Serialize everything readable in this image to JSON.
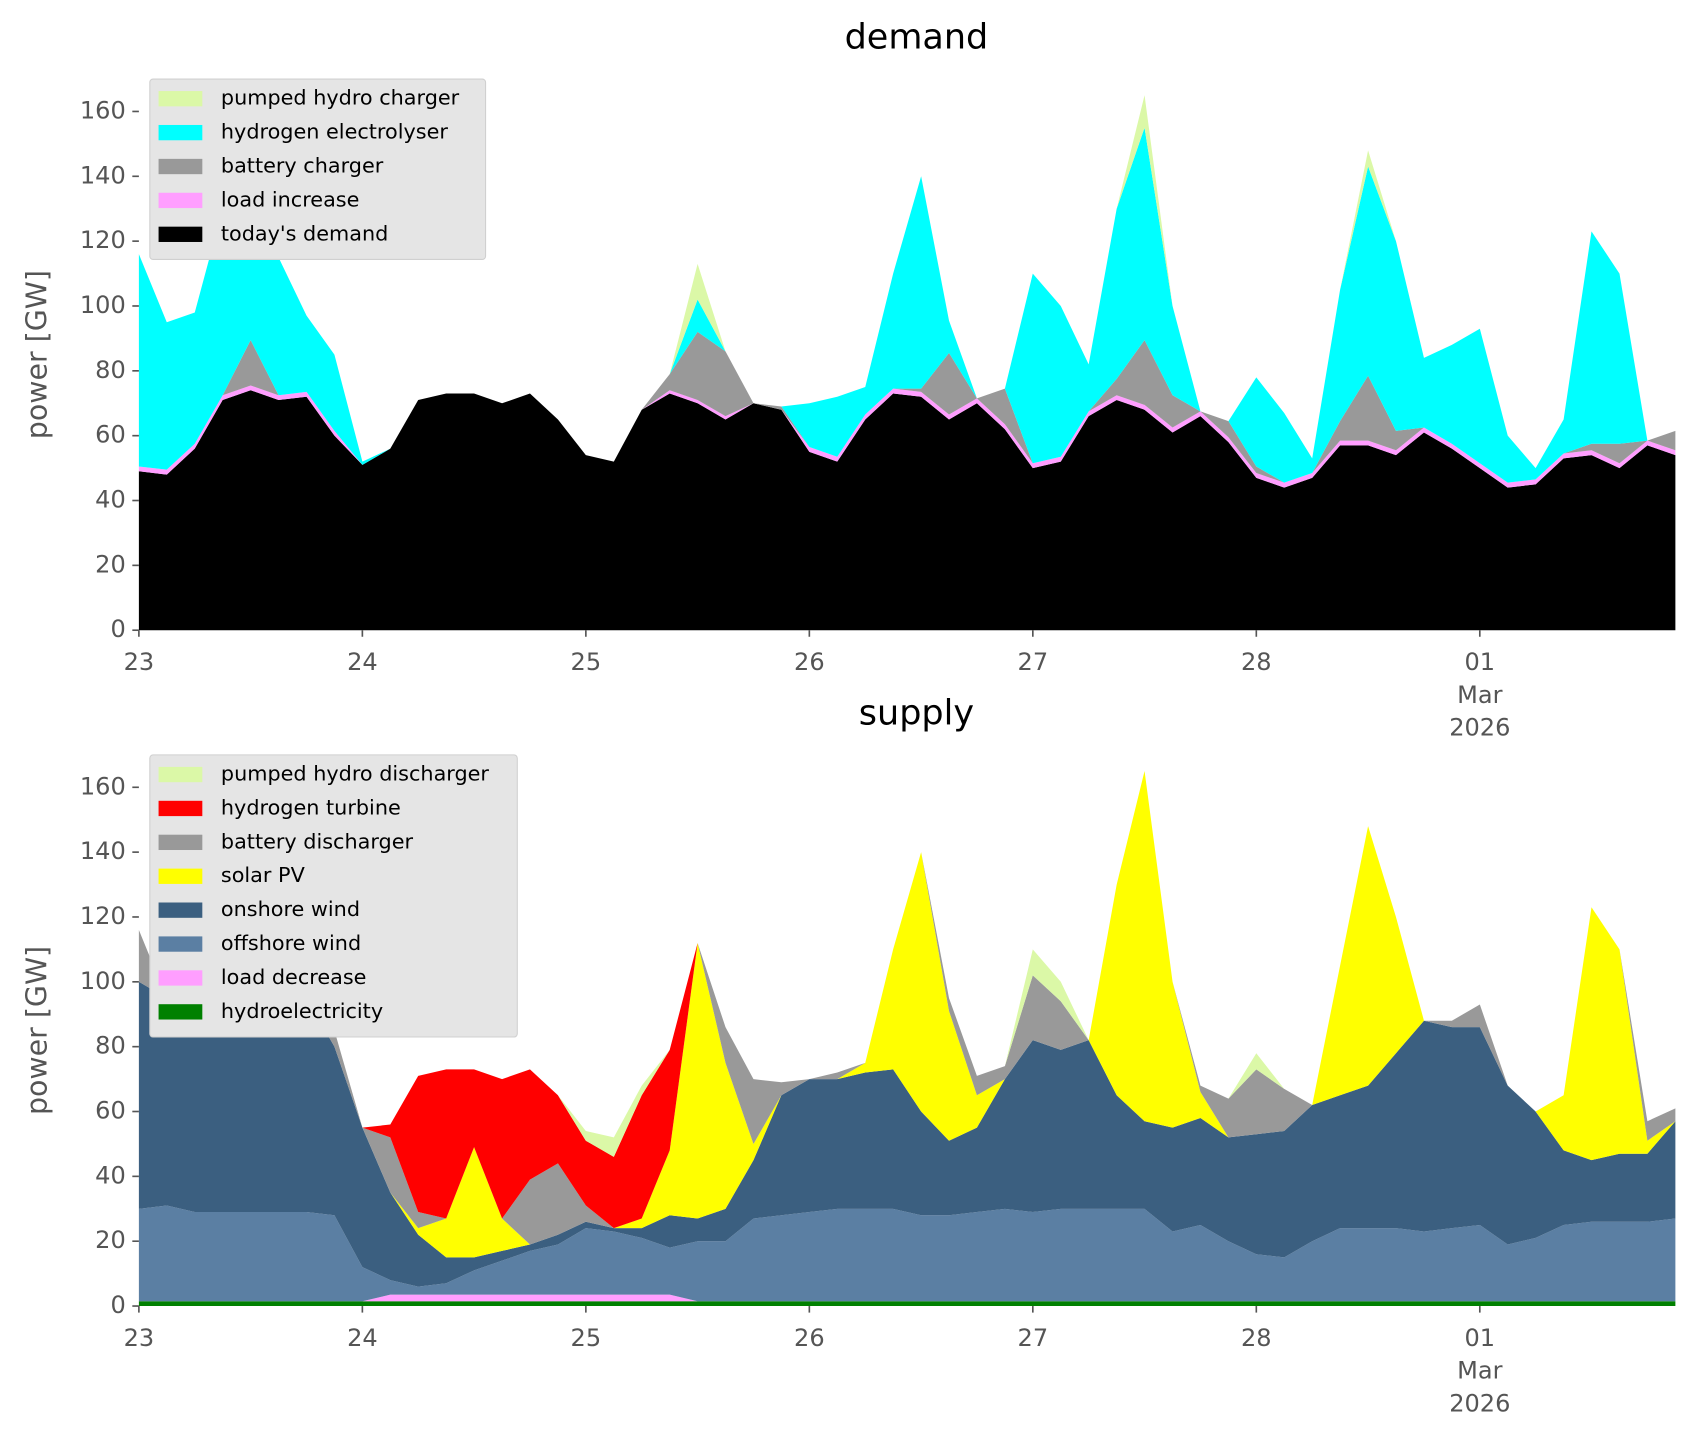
{
  "chart_data": [
    {
      "type": "area",
      "stacked": true,
      "title": "demand",
      "y_label": "power [GW]",
      "legend": "upper left",
      "x": [
        0,
        3,
        6,
        9,
        12,
        15,
        18,
        21,
        24,
        27,
        30,
        33,
        36,
        39,
        42,
        45,
        48,
        51,
        54,
        57,
        60,
        63,
        66,
        69,
        72,
        75,
        78,
        81,
        84,
        87,
        90,
        93,
        96,
        99,
        102,
        105,
        108,
        111,
        114,
        117,
        120,
        123,
        126,
        129,
        132,
        135,
        138,
        141,
        144,
        147,
        150,
        153,
        156,
        159,
        162,
        165
      ],
      "xlim": [
        0,
        167
      ],
      "xticks": [
        {
          "value": 0,
          "label": "23"
        },
        {
          "value": 24,
          "label": "24"
        },
        {
          "value": 48,
          "label": "25"
        },
        {
          "value": 72,
          "label": "26"
        },
        {
          "value": 96,
          "label": "27"
        },
        {
          "value": 120,
          "label": "28"
        },
        {
          "value": 144,
          "label": "01\nMar\n2026"
        }
      ],
      "ylim": [
        0,
        170
      ],
      "yticks": [
        0,
        20,
        40,
        60,
        80,
        100,
        120,
        140,
        160
      ],
      "series": [
        {
          "name": "today's demand",
          "color": "#000000",
          "values": [
            49,
            48,
            56,
            71,
            74,
            71,
            72,
            60,
            51,
            56,
            71,
            73,
            73,
            70,
            73,
            65,
            54,
            52,
            68,
            73,
            70,
            65,
            70,
            68,
            55,
            52,
            65,
            73,
            72,
            65,
            70,
            62,
            50,
            52,
            66,
            71,
            68,
            61,
            66,
            58,
            47,
            44,
            47,
            57,
            57,
            54,
            61,
            56,
            50,
            44,
            45,
            53,
            54,
            50,
            57,
            54
          ]
        },
        {
          "name": "load increase",
          "color": "#ff9eff",
          "values": [
            1.5,
            1.5,
            1.5,
            1.5,
            1.5,
            1.5,
            1.5,
            1.5,
            0,
            0,
            0,
            0,
            0,
            0,
            0,
            0,
            0,
            0,
            0,
            1,
            1,
            1,
            0,
            0,
            1.5,
            1.5,
            1.5,
            1.5,
            1.5,
            1.5,
            1.5,
            1.5,
            1.5,
            1.5,
            1.5,
            1.5,
            1.5,
            1.5,
            1.5,
            1.5,
            1.5,
            1.5,
            1.5,
            1.5,
            1.5,
            1.5,
            1.5,
            1.5,
            1.5,
            1.5,
            1.5,
            1.5,
            1.5,
            1.5,
            1.5,
            1.5
          ]
        },
        {
          "name": "battery charger",
          "color": "#999999",
          "values": [
            0,
            0,
            0,
            0,
            14,
            0,
            0,
            0,
            0,
            0,
            0,
            0,
            0,
            0,
            0,
            0,
            0,
            0,
            0,
            5,
            21,
            20,
            0,
            1,
            0,
            0,
            0,
            0,
            1,
            19,
            0,
            11,
            0,
            0,
            0,
            5,
            20,
            10,
            0,
            5,
            2,
            0,
            0,
            6,
            20,
            6,
            0,
            0,
            0,
            0,
            0,
            0,
            2,
            6,
            0,
            6
          ]
        },
        {
          "name": "hydrogen electrolyser",
          "color": "#00ffff",
          "values": [
            65.5,
            45.5,
            40.5,
            57.5,
            65.5,
            42.5,
            23.5,
            23.5,
            1,
            0,
            0,
            0,
            0,
            0,
            0,
            0,
            0,
            0,
            0,
            0,
            10,
            0,
            0,
            0,
            13.5,
            18.5,
            8.5,
            35.5,
            65.5,
            10,
            0,
            0,
            58.5,
            46.5,
            14.5,
            52.5,
            65.5,
            27.5,
            0,
            0,
            27.5,
            21.5,
            4.5,
            40.5,
            64.5,
            58.5,
            21.5,
            30.5,
            41.5,
            14.5,
            3.5,
            10.5,
            65.5,
            52.5,
            0,
            0
          ]
        },
        {
          "name": "pumped hydro charger",
          "color": "#dbf8a7",
          "values": [
            0,
            0,
            0,
            0,
            0,
            0,
            0,
            0,
            0,
            0,
            0,
            0,
            0,
            0,
            0,
            0,
            0,
            0,
            0,
            0,
            11,
            0,
            0,
            0,
            0,
            0,
            0,
            0,
            0,
            0,
            0,
            0,
            0,
            0,
            0,
            0,
            10,
            0,
            0,
            0,
            0,
            0,
            0,
            0,
            5,
            0,
            0,
            0,
            0,
            0,
            0,
            0,
            0,
            0,
            0,
            0
          ]
        }
      ]
    },
    {
      "type": "area",
      "stacked": true,
      "title": "supply",
      "y_label": "power [GW]",
      "legend": "upper left",
      "x": [
        0,
        3,
        6,
        9,
        12,
        15,
        18,
        21,
        24,
        27,
        30,
        33,
        36,
        39,
        42,
        45,
        48,
        51,
        54,
        57,
        60,
        63,
        66,
        69,
        72,
        75,
        78,
        81,
        84,
        87,
        90,
        93,
        96,
        99,
        102,
        105,
        108,
        111,
        114,
        117,
        120,
        123,
        126,
        129,
        132,
        135,
        138,
        141,
        144,
        147,
        150,
        153,
        156,
        159,
        162,
        165
      ],
      "xlim": [
        0,
        167
      ],
      "xticks": [
        {
          "value": 0,
          "label": "23"
        },
        {
          "value": 24,
          "label": "24"
        },
        {
          "value": 48,
          "label": "25"
        },
        {
          "value": 72,
          "label": "26"
        },
        {
          "value": 96,
          "label": "27"
        },
        {
          "value": 120,
          "label": "28"
        },
        {
          "value": 144,
          "label": "01\nMar\n2026"
        }
      ],
      "ylim": [
        0,
        170
      ],
      "yticks": [
        0,
        20,
        40,
        60,
        80,
        100,
        120,
        140,
        160
      ],
      "series": [
        {
          "name": "hydroelectricity",
          "color": "#008000",
          "values": [
            1.5,
            1.5,
            1.5,
            1.5,
            1.5,
            1.5,
            1.5,
            1.5,
            1.5,
            1.5,
            1.5,
            1.5,
            1.5,
            1.5,
            1.5,
            1.5,
            1.5,
            1.5,
            1.5,
            1.5,
            1.5,
            1.5,
            1.5,
            1.5,
            1.5,
            1.5,
            1.5,
            1.5,
            1.5,
            1.5,
            1.5,
            1.5,
            1.5,
            1.5,
            1.5,
            1.5,
            1.5,
            1.5,
            1.5,
            1.5,
            1.5,
            1.5,
            1.5,
            1.5,
            1.5,
            1.5,
            1.5,
            1.5,
            1.5,
            1.5,
            1.5,
            1.5,
            1.5,
            1.5,
            1.5,
            1.5
          ]
        },
        {
          "name": "load decrease",
          "color": "#ff9eff",
          "values": [
            0,
            0,
            0,
            0,
            0,
            0,
            0,
            0,
            0,
            2,
            2,
            2,
            2,
            2,
            2,
            2,
            2,
            2,
            2,
            2,
            0,
            0,
            0,
            0,
            0,
            0,
            0,
            0,
            0,
            0,
            0,
            0,
            0,
            0,
            0,
            0,
            0,
            0,
            0,
            0,
            0,
            0,
            0,
            0,
            0,
            0,
            0,
            0,
            0,
            0,
            0,
            0,
            0,
            0,
            0,
            0
          ]
        },
        {
          "name": "offshore wind",
          "color": "#5b7fa3",
          "values": [
            28.5,
            29.5,
            27.5,
            27.5,
            27.5,
            27.5,
            27.5,
            26.5,
            10.5,
            4.5,
            2.5,
            3.5,
            7.5,
            10.5,
            13.5,
            15.5,
            20.5,
            19.5,
            17.5,
            14.5,
            18.5,
            18.5,
            25.5,
            26.5,
            27.5,
            28.5,
            28.5,
            28.5,
            26.5,
            26.5,
            27.5,
            28.5,
            27.5,
            28.5,
            28.5,
            28.5,
            28.5,
            21.5,
            23.5,
            18.5,
            14.5,
            13.5,
            18.5,
            22.5,
            22.5,
            22.5,
            21.5,
            22.5,
            23.5,
            17.5,
            19.5,
            23.5,
            24.5,
            24.5,
            24.5,
            25.5
          ]
        },
        {
          "name": "onshore wind",
          "color": "#3b5f80",
          "values": [
            70,
            64,
            66,
            71,
            79,
            76,
            66,
            52,
            43,
            27,
            16,
            8,
            4,
            3,
            2,
            3,
            2,
            1,
            3,
            10,
            7,
            10,
            18,
            37,
            41,
            40,
            42,
            43,
            32,
            23,
            26,
            40,
            53,
            49,
            52,
            35,
            27,
            32,
            33,
            32,
            37,
            39,
            42,
            41,
            44,
            54,
            65,
            62,
            61,
            49,
            39,
            23,
            19,
            21,
            21,
            30
          ]
        },
        {
          "name": "solar PV",
          "color": "#ffff00",
          "values": [
            0,
            0,
            3,
            30,
            47,
            10,
            0,
            0,
            0,
            0,
            2,
            12,
            34,
            10,
            0,
            0,
            0,
            0,
            3,
            20,
            85,
            45,
            5,
            0,
            0,
            0,
            3,
            37,
            80,
            40,
            10,
            0,
            0,
            0,
            0,
            65,
            108,
            45,
            8,
            0,
            0,
            0,
            0,
            40,
            80,
            42,
            0,
            0,
            0,
            0,
            0,
            17,
            78,
            63,
            4,
            0
          ]
        },
        {
          "name": "battery discharger",
          "color": "#999999",
          "values": [
            16,
            0,
            0,
            0,
            0,
            0,
            2,
            5,
            0,
            17,
            5,
            0,
            0,
            0,
            20,
            22,
            5,
            0,
            0,
            0,
            0,
            11,
            20,
            4,
            0,
            2,
            0,
            0,
            0,
            4,
            6,
            4,
            20,
            15,
            0,
            0,
            0,
            0,
            2,
            12,
            20,
            13,
            0,
            0,
            0,
            0,
            0,
            2,
            7,
            0,
            0,
            0,
            0,
            0,
            6,
            4
          ]
        },
        {
          "name": "hydrogen turbine",
          "color": "#ff0000",
          "values": [
            0,
            0,
            0,
            0,
            0,
            0,
            0,
            0,
            0,
            4,
            42,
            46,
            24,
            43,
            34,
            21,
            20,
            22,
            38,
            31,
            0,
            0,
            0,
            0,
            0,
            0,
            0,
            0,
            0,
            0,
            0,
            0,
            0,
            0,
            0,
            0,
            0,
            0,
            0,
            0,
            0,
            0,
            0,
            0,
            0,
            0,
            0,
            0,
            0,
            0,
            0,
            0,
            0,
            0,
            0,
            0
          ]
        },
        {
          "name": "pumped hydro discharger",
          "color": "#dbf8a7",
          "values": [
            0,
            0,
            0,
            0,
            0,
            0,
            0,
            0,
            0,
            0,
            0,
            0,
            0,
            0,
            0,
            0,
            3,
            6,
            3,
            0,
            0,
            0,
            0,
            0,
            0,
            0,
            0,
            0,
            0,
            0,
            0,
            0,
            8,
            6,
            0,
            0,
            0,
            0,
            0,
            0,
            5,
            0,
            0,
            0,
            0,
            0,
            0,
            0,
            0,
            0,
            0,
            0,
            0,
            0,
            0,
            0
          ]
        }
      ]
    }
  ]
}
